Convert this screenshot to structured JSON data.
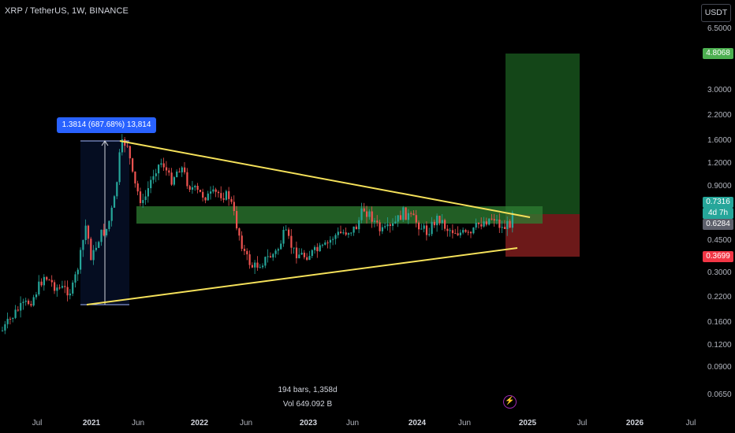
{
  "header": {
    "title": "XRP / TetherUS, 1W, BINANCE"
  },
  "price_scale": {
    "currency_button": "USDT",
    "ticks": [
      "6.5000",
      "3.0000",
      "2.2000",
      "1.6000",
      "1.2000",
      "0.9000",
      "0.4500",
      "0.3000",
      "0.2200",
      "0.1600",
      "0.1200",
      "0.0900",
      "0.0650"
    ],
    "target_tag": "4.8068",
    "last_price_tag": "0.7316",
    "countdown_tag": "4d 7h",
    "entry_tag": "0.6284",
    "stop_tag": "0.3699"
  },
  "time_axis": {
    "labels": [
      {
        "text": "Jul",
        "bold": false
      },
      {
        "text": "2021",
        "bold": true
      },
      {
        "text": "Jun",
        "bold": false
      },
      {
        "text": "2022",
        "bold": true
      },
      {
        "text": "Jun",
        "bold": false
      },
      {
        "text": "2023",
        "bold": true
      },
      {
        "text": "Jun",
        "bold": false
      },
      {
        "text": "2024",
        "bold": true
      },
      {
        "text": "Jun",
        "bold": false
      },
      {
        "text": "2025",
        "bold": true
      },
      {
        "text": "Jul",
        "bold": false
      },
      {
        "text": "2026",
        "bold": true
      },
      {
        "text": "Jul",
        "bold": false
      }
    ]
  },
  "measure_tool": {
    "label": "1.3814 (687.68%) 13,814",
    "bars_info": "194 bars, 1,358d",
    "vol_info": "Vol 649.092 B"
  },
  "colors": {
    "background": "#000000",
    "candle_up": "#26a69a",
    "candle_down": "#ef5350",
    "trendline": "#f5e15a",
    "zone": "#2e7d32",
    "target_zone": "#1b5e20",
    "stop_zone": "#7f1d1d",
    "measure": "#2962ff",
    "target_tag": "#4caf50",
    "last_price_tag": "#26a69a",
    "entry_tag": "#5d606b",
    "stop_tag": "#f23645"
  },
  "icons": {
    "event_icon": "lightning-icon"
  }
}
